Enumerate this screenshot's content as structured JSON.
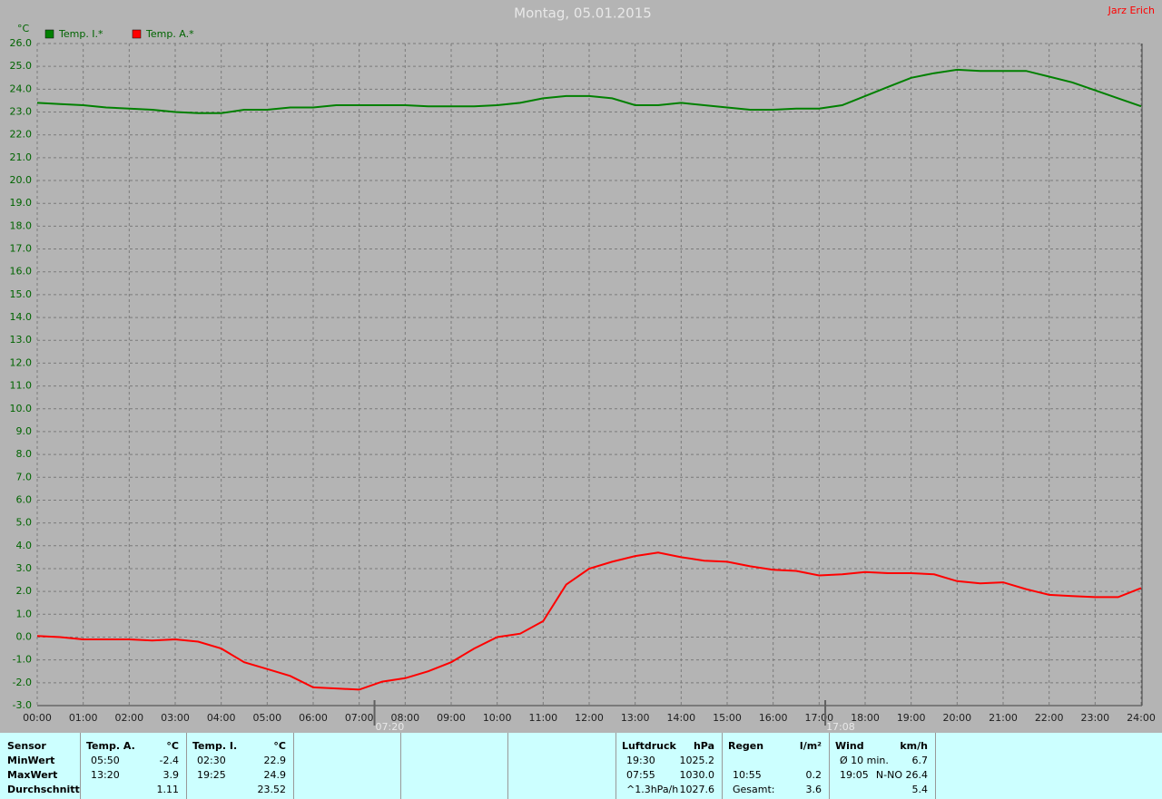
{
  "chart_data": {
    "type": "line",
    "title": "Montag, 05.01.2015",
    "author": "Jarz Erich",
    "y_label": "°C",
    "x": [
      0,
      0.5,
      1,
      1.5,
      2,
      2.5,
      3,
      3.5,
      4,
      4.5,
      5,
      5.5,
      6,
      6.5,
      7,
      7.5,
      8,
      8.5,
      9,
      9.5,
      10,
      10.5,
      11,
      11.5,
      12,
      12.5,
      13,
      13.5,
      14,
      14.5,
      15,
      15.5,
      16,
      16.5,
      17,
      17.5,
      18,
      18.5,
      19,
      19.5,
      20,
      20.5,
      21,
      21.5,
      22,
      22.5,
      23,
      23.5,
      24
    ],
    "series": [
      {
        "name": "Temp. I.*",
        "color": "#008000",
        "values": [
          23.4,
          23.35,
          23.3,
          23.2,
          23.15,
          23.1,
          23.0,
          22.95,
          22.95,
          23.1,
          23.1,
          23.2,
          23.2,
          23.3,
          23.3,
          23.3,
          23.3,
          23.25,
          23.25,
          23.25,
          23.3,
          23.4,
          23.6,
          23.7,
          23.7,
          23.6,
          23.3,
          23.3,
          23.4,
          23.3,
          23.2,
          23.1,
          23.1,
          23.15,
          23.15,
          23.3,
          23.7,
          24.1,
          24.5,
          24.7,
          24.85,
          24.8,
          24.8,
          24.8,
          24.55,
          24.3,
          23.95,
          23.6,
          23.25
        ]
      },
      {
        "name": "Temp. A.*",
        "color": "#ff0000",
        "values": [
          0.05,
          0.0,
          -0.1,
          -0.1,
          -0.1,
          -0.15,
          -0.1,
          -0.2,
          -0.5,
          -1.1,
          -1.4,
          -1.7,
          -2.2,
          -2.25,
          -2.3,
          -1.95,
          -1.8,
          -1.5,
          -1.1,
          -0.5,
          0.0,
          0.15,
          0.7,
          2.3,
          3.0,
          3.3,
          3.55,
          3.7,
          3.5,
          3.35,
          3.3,
          3.1,
          2.95,
          2.9,
          2.7,
          2.75,
          2.85,
          2.8,
          2.8,
          2.75,
          2.45,
          2.35,
          2.4,
          2.1,
          1.85,
          1.8,
          1.75,
          1.75,
          2.15
        ]
      }
    ],
    "xlim": [
      0,
      24
    ],
    "xticks": [
      {
        "value": 0,
        "label": "00:00"
      },
      {
        "value": 1,
        "label": "01:00"
      },
      {
        "value": 2,
        "label": "02:00"
      },
      {
        "value": 3,
        "label": "03:00"
      },
      {
        "value": 4,
        "label": "04:00"
      },
      {
        "value": 5,
        "label": "05:00"
      },
      {
        "value": 6,
        "label": "06:00"
      },
      {
        "value": 7,
        "label": "07:00"
      },
      {
        "value": 8,
        "label": "08:00"
      },
      {
        "value": 9,
        "label": "09:00"
      },
      {
        "value": 10,
        "label": "10:00"
      },
      {
        "value": 11,
        "label": "11:00"
      },
      {
        "value": 12,
        "label": "12:00"
      },
      {
        "value": 13,
        "label": "13:00"
      },
      {
        "value": 14,
        "label": "14:00"
      },
      {
        "value": 15,
        "label": "15:00"
      },
      {
        "value": 16,
        "label": "16:00"
      },
      {
        "value": 17,
        "label": "17:00"
      },
      {
        "value": 18,
        "label": "18:00"
      },
      {
        "value": 19,
        "label": "19:00"
      },
      {
        "value": 20,
        "label": "20:00"
      },
      {
        "value": 21,
        "label": "21:00"
      },
      {
        "value": 22,
        "label": "22:00"
      },
      {
        "value": 23,
        "label": "23:00"
      },
      {
        "value": 24,
        "label": "24:00"
      }
    ],
    "ylim": [
      -3,
      26
    ],
    "yticks": [
      {
        "value": -3,
        "label": "-3.0"
      },
      {
        "value": -2,
        "label": "-2.0"
      },
      {
        "value": -1,
        "label": "-1.0"
      },
      {
        "value": 0,
        "label": "0.0"
      },
      {
        "value": 1,
        "label": "1.0"
      },
      {
        "value": 2,
        "label": "2.0"
      },
      {
        "value": 3,
        "label": "3.0"
      },
      {
        "value": 4,
        "label": "4.0"
      },
      {
        "value": 5,
        "label": "5.0"
      },
      {
        "value": 6,
        "label": "6.0"
      },
      {
        "value": 7,
        "label": "7.0"
      },
      {
        "value": 8,
        "label": "8.0"
      },
      {
        "value": 9,
        "label": "9.0"
      },
      {
        "value": 10,
        "label": "10.0"
      },
      {
        "value": 11,
        "label": "11.0"
      },
      {
        "value": 12,
        "label": "12.0"
      },
      {
        "value": 13,
        "label": "13.0"
      },
      {
        "value": 14,
        "label": "14.0"
      },
      {
        "value": 15,
        "label": "15.0"
      },
      {
        "value": 16,
        "label": "16.0"
      },
      {
        "value": 17,
        "label": "17.0"
      },
      {
        "value": 18,
        "label": "18.0"
      },
      {
        "value": 19,
        "label": "19.0"
      },
      {
        "value": 20,
        "label": "20.0"
      },
      {
        "value": 21,
        "label": "21.0"
      },
      {
        "value": 22,
        "label": "22.0"
      },
      {
        "value": 23,
        "label": "23.0"
      },
      {
        "value": 24,
        "label": "24.0"
      },
      {
        "value": 25,
        "label": "25.0"
      },
      {
        "value": 26,
        "label": "26.0"
      }
    ],
    "grid": true,
    "annotations": [
      {
        "x": 7.333,
        "label": "07:20"
      },
      {
        "x": 17.133,
        "label": "17:08"
      }
    ]
  },
  "table": {
    "row_labels": [
      "Sensor",
      "MinWert",
      "MaxWert",
      "Durchschnitt"
    ],
    "groups": [
      {
        "header": "Temp. A.",
        "unit": "°C",
        "rows": [
          [
            "05:50",
            "-2.4"
          ],
          [
            "13:20",
            "3.9"
          ],
          [
            null,
            "1.11"
          ]
        ],
        "col": 1
      },
      {
        "header": "Temp. I.",
        "unit": "°C",
        "rows": [
          [
            "02:30",
            "22.9"
          ],
          [
            "19:25",
            "24.9"
          ],
          [
            null,
            "23.52"
          ]
        ],
        "col": 2
      },
      {
        "header": "Luftdruck",
        "unit": "hPa",
        "rows": [
          [
            "19:30",
            "1025.2"
          ],
          [
            "07:55",
            "1030.0"
          ],
          [
            "^1.3hPa/h",
            "1027.6"
          ]
        ],
        "col": 6
      },
      {
        "header": "Regen",
        "unit": "l/m²",
        "rows": [
          [
            null,
            null
          ],
          [
            "10:55",
            "0.2"
          ],
          [
            "Gesamt:",
            "3.6"
          ]
        ],
        "col": 7
      },
      {
        "header": "Wind",
        "unit": "km/h",
        "rows": [
          [
            "Ø 10 min.",
            "6.7"
          ],
          [
            "19:05",
            "N-NO 26.4"
          ],
          [
            null,
            "5.4"
          ]
        ],
        "col": 8
      }
    ]
  }
}
